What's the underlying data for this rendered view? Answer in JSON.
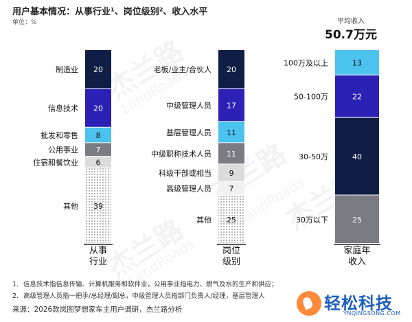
{
  "header": {
    "title": "用户基本情况：从事行业¹、岗位级别²、收入水平",
    "unit": "单位：%"
  },
  "avg_income": {
    "label": "平均收入",
    "value": "50.7万元"
  },
  "chart_data": [
    {
      "type": "bar",
      "stacked": true,
      "axis_label": "从事\n行业",
      "segments": [
        {
          "name": "制造业",
          "value": 20,
          "color": "#101d44",
          "label_color": "#ffffff"
        },
        {
          "name": "信息技术",
          "value": 20,
          "color": "#2c21b5",
          "label_color": "#ffffff"
        },
        {
          "name": "批发和零售",
          "value": 8,
          "color": "#4cc2ef",
          "label_color": "#111111"
        },
        {
          "name": "公用事业",
          "value": 7,
          "color": "#7b7b84",
          "label_color": "#ffffff"
        },
        {
          "name": "住宿和餐饮业",
          "value": 6,
          "color": "#dcdcdc",
          "label_color": "#111111"
        },
        {
          "name": "其他",
          "value": 39,
          "color": "dots",
          "label_color": "#111111"
        }
      ]
    },
    {
      "type": "bar",
      "stacked": true,
      "axis_label": "岗位\n级别",
      "segments": [
        {
          "name": "老板/业主/合伙人",
          "value": 20,
          "color": "#101d44",
          "label_color": "#ffffff"
        },
        {
          "name": "中级管理人员",
          "value": 17,
          "color": "#2c21b5",
          "label_color": "#ffffff"
        },
        {
          "name": "基层管理人员",
          "value": 11,
          "color": "#4cc2ef",
          "label_color": "#111111"
        },
        {
          "name": "中级职称技术人员",
          "value": 11,
          "color": "#7b7b84",
          "label_color": "#ffffff"
        },
        {
          "name": "科级干部或相当",
          "value": 9,
          "color": "#dcdcdc",
          "label_color": "#111111"
        },
        {
          "name": "高级管理人员",
          "value": 7,
          "color": "#f1f1f1",
          "label_color": "#111111"
        },
        {
          "name": "其他",
          "value": 25,
          "color": "dots",
          "label_color": "#111111"
        }
      ]
    },
    {
      "type": "bar",
      "stacked": true,
      "axis_label": "家庭年\n收入",
      "segments": [
        {
          "name": "100万及以上",
          "value": 13,
          "color": "#4cc2ef",
          "label_color": "#111111"
        },
        {
          "name": "50-100万",
          "value": 22,
          "color": "#2c21b5",
          "label_color": "#ffffff"
        },
        {
          "name": "30-50万",
          "value": 40,
          "color": "#101d44",
          "label_color": "#ffffff"
        },
        {
          "name": "30万以下",
          "value": 25,
          "color": "#7b7b84",
          "label_color": "#ffffff"
        }
      ]
    }
  ],
  "footnotes": [
    {
      "num": "1.",
      "text": "信息技术指信息传输、计算机服务和软件业，公用事业指电力、燃气及水的生产和供应；"
    },
    {
      "num": "2.",
      "text": "高级管理人员指一把手/总经理/副总，中级管理人员指部门负责人/经理，基层管理人"
    }
  ],
  "source": "来源：2026款岚图梦想家车主用户调研，杰兰路分析",
  "watermark": {
    "cn": "杰兰路",
    "en": "LandRoads"
  },
  "brand": {
    "name": "轻松科技",
    "url": "YNQINGSONG.COM",
    "icon": "pin-logo-icon"
  }
}
